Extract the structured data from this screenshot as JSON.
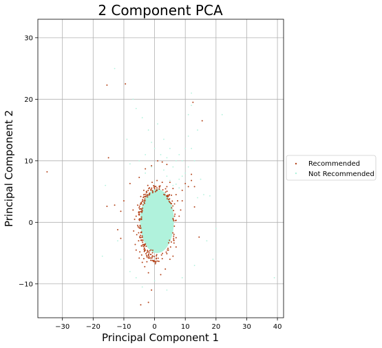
{
  "chart_data": {
    "type": "scatter",
    "title": "2 Component PCA",
    "xlabel": "Principal Component 1",
    "ylabel": "Principal Component 2",
    "xlim": [
      -38,
      42
    ],
    "ylim": [
      -15.5,
      33
    ],
    "xticks": [
      -30,
      -20,
      -10,
      0,
      10,
      20,
      30,
      40
    ],
    "yticks": [
      -10,
      0,
      10,
      20,
      30
    ],
    "xtick_labels": [
      "−30",
      "−20",
      "−10",
      "0",
      "10",
      "20",
      "30",
      "40"
    ],
    "ytick_labels": [
      "−10",
      "0",
      "10",
      "20",
      "30"
    ],
    "grid": true,
    "legend_position": "right",
    "series": [
      {
        "name": "Not Recommended",
        "color": "#b0f2dc",
        "core": {
          "cx": 0.8,
          "cy": 0.2,
          "rx": 5.5,
          "ry": 5.2
        },
        "points": [
          [
            -13,
            25
          ],
          [
            -16,
            6
          ],
          [
            -6,
            18.5
          ],
          [
            -4,
            17
          ],
          [
            -2,
            15
          ],
          [
            -1,
            13
          ],
          [
            0,
            12
          ],
          [
            1,
            16
          ],
          [
            4,
            10.5
          ],
          [
            5,
            12
          ],
          [
            6,
            9
          ],
          [
            7,
            10
          ],
          [
            8,
            11
          ],
          [
            9,
            10
          ],
          [
            10,
            12
          ],
          [
            11,
            14
          ],
          [
            12,
            12
          ],
          [
            11,
            17.5
          ],
          [
            14,
            15
          ],
          [
            12,
            19
          ],
          [
            3,
            13.5
          ],
          [
            -3,
            11
          ],
          [
            -5,
            10
          ],
          [
            -8,
            9.5
          ],
          [
            -9,
            13.5
          ],
          [
            15,
            7
          ],
          [
            16,
            4.5
          ],
          [
            14,
            4
          ],
          [
            18,
            4.3
          ],
          [
            20,
            -1
          ],
          [
            17,
            -3
          ],
          [
            13,
            -7
          ],
          [
            19,
            -6
          ],
          [
            -11,
            -6
          ],
          [
            -17,
            -5.5
          ],
          [
            -12,
            -3
          ],
          [
            -8,
            -8
          ],
          [
            -6,
            -9
          ],
          [
            -4,
            -10.5
          ],
          [
            0,
            -9.5
          ],
          [
            4,
            -11
          ],
          [
            9,
            -9
          ],
          [
            8,
            7
          ],
          [
            6,
            6
          ],
          [
            10,
            8
          ],
          [
            11,
            9
          ],
          [
            13,
            10
          ],
          [
            2,
            11
          ],
          [
            -1,
            9
          ],
          [
            -3,
            8
          ],
          [
            3,
            8.5
          ],
          [
            4,
            7.5
          ],
          [
            5,
            6.8
          ],
          [
            7,
            6.2
          ],
          [
            8,
            5.6
          ],
          [
            9,
            7.5
          ],
          [
            39,
            -9
          ],
          [
            22,
            17.5
          ],
          [
            -7,
            20
          ],
          [
            12,
            21
          ]
        ]
      },
      {
        "name": "Recommended",
        "color": "#b4441b",
        "ring": {
          "cx": 0.8,
          "cy": 0.2,
          "rx": 5.5,
          "ry": 5.2,
          "count": 320
        },
        "points": [
          [
            -35,
            8.2
          ],
          [
            -15.5,
            22.3
          ],
          [
            -9.5,
            22.5
          ],
          [
            -15,
            10.5
          ],
          [
            -15.5,
            2.6
          ],
          [
            -8,
            6.3
          ],
          [
            -5,
            7.3
          ],
          [
            -3,
            8.7
          ],
          [
            -1,
            9.2
          ],
          [
            1,
            10
          ],
          [
            2.5,
            9.8
          ],
          [
            4,
            9.4
          ],
          [
            5,
            6.5
          ],
          [
            6,
            5.5
          ],
          [
            7,
            4.5
          ],
          [
            9,
            3.5
          ],
          [
            12.5,
            19.5
          ],
          [
            15.5,
            16.5
          ],
          [
            13,
            5.8
          ],
          [
            12,
            7.8
          ],
          [
            14.5,
            -2.4
          ],
          [
            -2,
            -13
          ],
          [
            -4.5,
            -13.4
          ],
          [
            -1,
            -11
          ],
          [
            -11,
            -2.6
          ],
          [
            -10,
            3.5
          ],
          [
            -7,
            2
          ],
          [
            -6,
            -4.5
          ],
          [
            -5,
            -5.8
          ],
          [
            -4,
            -6.5
          ],
          [
            -3.2,
            -7.2
          ],
          [
            -2,
            -8.2
          ],
          [
            2,
            -8.5
          ],
          [
            3.5,
            -7.6
          ],
          [
            5,
            -6
          ],
          [
            6,
            -5.5
          ],
          [
            7,
            -4
          ],
          [
            7,
            -2.5
          ],
          [
            8,
            1
          ],
          [
            7.5,
            3.5
          ],
          [
            -5.5,
            -0.5
          ],
          [
            -6,
            1
          ],
          [
            -5.8,
            -2
          ],
          [
            -5.2,
            -3
          ],
          [
            -4.8,
            -4.8
          ],
          [
            -3.5,
            -5.9
          ],
          [
            -2.5,
            -6.4
          ],
          [
            -6.5,
            0.5
          ],
          [
            -6.8,
            -1.4
          ],
          [
            -6.3,
            -3.6
          ],
          [
            -4.2,
            -5.3
          ],
          [
            -3.8,
            -3.6
          ],
          [
            -2.8,
            -5.1
          ],
          [
            -1.8,
            -5.8
          ],
          [
            -0.5,
            -6.2
          ],
          [
            1,
            -6.3
          ],
          [
            2.5,
            -5.9
          ],
          [
            4,
            -5.1
          ],
          [
            -5.5,
            2.8
          ],
          [
            -4.5,
            4.2
          ],
          [
            -3.5,
            5.2
          ],
          [
            -2.2,
            6
          ],
          [
            -0.8,
            6.5
          ],
          [
            0.8,
            6.8
          ],
          [
            2.5,
            6.5
          ],
          [
            4,
            5.8
          ],
          [
            5.5,
            4.4
          ],
          [
            6.5,
            3
          ],
          [
            6.8,
            0.3
          ],
          [
            6.2,
            -2.6
          ],
          [
            5.2,
            -4
          ],
          [
            10,
            6.3
          ],
          [
            11,
            5.8
          ],
          [
            12,
            6.8
          ],
          [
            9,
            5.2
          ],
          [
            13,
            2.5
          ],
          [
            8.5,
            2
          ],
          [
            -12,
            -1.2
          ],
          [
            -13,
            2.8
          ],
          [
            -11,
            1.8
          ]
        ]
      }
    ]
  }
}
